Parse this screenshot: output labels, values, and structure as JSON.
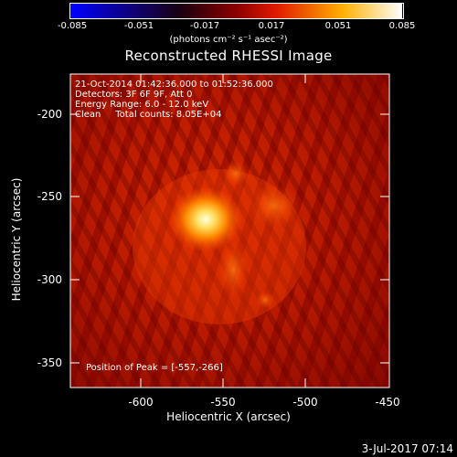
{
  "colorbar": {
    "ticks": [
      "-0.085",
      "-0.051",
      "-0.017",
      "0.017",
      "0.051",
      "0.085"
    ],
    "units": "(photons cm⁻² s⁻¹ asec⁻²)",
    "colors": [
      "#0000ff",
      "#000000",
      "#ff0000",
      "#ffd200",
      "#ffffff"
    ]
  },
  "title": "Reconstructed RHESSI Image",
  "info": {
    "line1": "21-Oct-2014 01:42:36.000 to 01:52:36.000",
    "line2": "Detectors: 3F 6F 9F, Att 0",
    "line3": "Energy Range: 6.0 - 12.0 keV",
    "line4": "Clean     Total counts: 8.05E+04"
  },
  "peak_label": "Position of Peak = [-557,-266]",
  "axes": {
    "xlabel": "Heliocentric X (arcsec)",
    "ylabel": "Heliocentric Y (arcsec)",
    "xticks": [
      "-600",
      "-550",
      "-500",
      "-450"
    ],
    "yticks": [
      "-200",
      "-250",
      "-300",
      "-350"
    ],
    "xlim": [
      -642,
      -450
    ],
    "ylim": [
      -368,
      -175
    ]
  },
  "date_stamp": "3-Jul-2017 07:14"
}
